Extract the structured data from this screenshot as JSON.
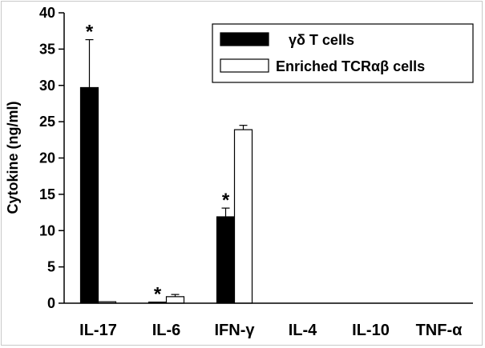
{
  "chart_data": {
    "type": "bar",
    "title": "",
    "xlabel": "",
    "ylabel": "Cytokine (ng/ml)",
    "ylim": [
      0,
      40
    ],
    "yticks": [
      0,
      5,
      10,
      15,
      20,
      25,
      30,
      35,
      40
    ],
    "grid": false,
    "legend_position": "top-right",
    "categories": [
      "IL-17",
      "IL-6",
      "IFN-γ",
      "IL-4",
      "IL-10",
      "TNF-α"
    ],
    "series": [
      {
        "name": "γδ T cells",
        "color": "#000000",
        "values": [
          29.7,
          0.15,
          11.9,
          0,
          0,
          0
        ],
        "errors": [
          6.6,
          0,
          1.2,
          0,
          0,
          0
        ],
        "significance": [
          "*",
          "*",
          "*",
          "",
          "",
          ""
        ]
      },
      {
        "name": "Enriched TCRαβ cells",
        "color": "#ffffff",
        "values": [
          0.2,
          0.9,
          23.9,
          0,
          0,
          0
        ],
        "errors": [
          0,
          0.3,
          0.6,
          0,
          0,
          0
        ],
        "significance": [
          "",
          "",
          "",
          "",
          "",
          ""
        ]
      }
    ]
  }
}
